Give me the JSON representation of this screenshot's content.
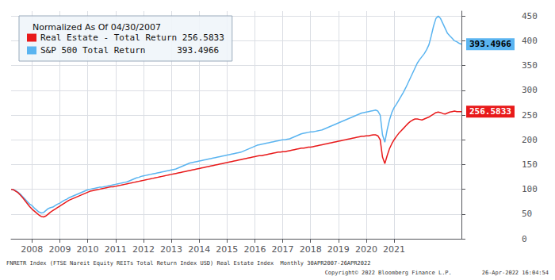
{
  "chart_data": {
    "type": "line",
    "legend_title": "Normalized As Of 04/30/2007",
    "legend": "upper left",
    "grid": true,
    "categories": [
      null,
      null,
      null,
      null,
      null,
      null,
      null,
      null,
      null,
      "2008",
      null,
      null,
      null,
      null,
      null,
      null,
      null,
      null,
      null,
      null,
      null,
      "2009",
      null,
      null,
      null,
      null,
      null,
      null,
      null,
      null,
      null,
      null,
      null,
      "2010",
      null,
      null,
      null,
      null,
      null,
      null,
      null,
      null,
      null,
      null,
      null,
      "2011",
      null,
      null,
      null,
      null,
      null,
      null,
      null,
      null,
      null,
      null,
      null,
      "2012",
      null,
      null,
      null,
      null,
      null,
      null,
      null,
      null,
      null,
      null,
      null,
      "2013",
      null,
      null,
      null,
      null,
      null,
      null,
      null,
      null,
      null,
      null,
      null,
      "2014",
      null,
      null,
      null,
      null,
      null,
      null,
      null,
      null,
      null,
      null,
      null,
      "2015",
      null,
      null,
      null,
      null,
      null,
      null,
      null,
      null,
      null,
      null,
      null,
      "2016",
      null,
      null,
      null,
      null,
      null,
      null,
      null,
      null,
      null,
      null,
      null,
      "2017",
      null,
      null,
      null,
      null,
      null,
      null,
      null,
      null,
      null,
      null,
      null,
      "2018",
      null,
      null,
      null,
      null,
      null,
      null,
      null,
      null,
      null,
      null,
      null,
      "2019",
      null,
      null,
      null,
      null,
      null,
      null,
      null,
      null,
      null,
      null,
      null,
      "2020",
      null,
      null,
      null,
      null,
      null,
      null,
      null,
      null,
      null,
      null,
      null,
      "2021",
      null,
      null,
      null,
      null,
      null,
      null,
      null,
      null,
      null,
      null,
      null,
      null,
      null,
      null,
      null,
      null,
      null,
      null,
      null,
      null,
      null,
      null,
      null,
      null,
      null,
      null,
      null,
      null,
      null
    ],
    "ylim": [
      0,
      460
    ],
    "yticks": [
      0,
      50,
      100,
      150,
      200,
      250,
      300,
      350,
      400,
      450
    ],
    "annotations": [
      {
        "text": "FNRETR Index (FTSE Nareit Equity REITs Total Return Index USD) Real Estate Index  Monthly 30APR2007-26APR2022"
      },
      {
        "text": "Copyright© 2022 Bloomberg Finance L.P.         26-Apr-2022 16:04:54"
      }
    ],
    "series": [
      {
        "name": "S&P 500 Total Return      393.4966",
        "color": "#5ab4f0",
        "end_label": "393.4966",
        "values": [
          100,
          99,
          97,
          94,
          90,
          85,
          80,
          75,
          70,
          67,
          62,
          58,
          54,
          52,
          53,
          57,
          61,
          63,
          64,
          67,
          70,
          72,
          75,
          78,
          80,
          83,
          85,
          87,
          89,
          91,
          93,
          95,
          97,
          99,
          100,
          101,
          102,
          103,
          104,
          104,
          105,
          106,
          107,
          108,
          109,
          110,
          111,
          112,
          113,
          114,
          115,
          117,
          119,
          121,
          123,
          124,
          126,
          127,
          128,
          129,
          130,
          131,
          132,
          133,
          134,
          135,
          136,
          137,
          138,
          139,
          140,
          141,
          143,
          145,
          147,
          149,
          151,
          153,
          154,
          155,
          156,
          157,
          158,
          159,
          160,
          161,
          162,
          163,
          164,
          165,
          166,
          167,
          168,
          169,
          170,
          171,
          172,
          173,
          174,
          175,
          177,
          179,
          181,
          183,
          185,
          187,
          189,
          190,
          191,
          192,
          193,
          194,
          195,
          196,
          197,
          198,
          199,
          200,
          200,
          201,
          202,
          204,
          206,
          208,
          210,
          212,
          213,
          214,
          215,
          216,
          216,
          217,
          218,
          219,
          220,
          222,
          224,
          226,
          228,
          230,
          232,
          234,
          236,
          238,
          240,
          242,
          244,
          246,
          248,
          250,
          252,
          254,
          255,
          256,
          257,
          258,
          259,
          260,
          258,
          250,
          210,
          195,
          220,
          240,
          255,
          265,
          272,
          280,
          288,
          296,
          305,
          315,
          325,
          335,
          345,
          355,
          362,
          368,
          374,
          382,
          392,
          410,
          430,
          445,
          450,
          445,
          435,
          425,
          415,
          410,
          405,
          400,
          398,
          395,
          393
        ]
      },
      {
        "name": "Real Estate - Total Return 256.5833",
        "color": "#e8191a",
        "end_label": "256.5833",
        "values": [
          100,
          99,
          96,
          93,
          88,
          83,
          77,
          71,
          65,
          60,
          56,
          52,
          48,
          45,
          44,
          46,
          50,
          54,
          57,
          60,
          63,
          66,
          69,
          72,
          75,
          78,
          80,
          82,
          84,
          86,
          88,
          90,
          92,
          94,
          96,
          97,
          98,
          99,
          100,
          101,
          102,
          103,
          104,
          105,
          105,
          106,
          107,
          108,
          109,
          110,
          111,
          112,
          113,
          114,
          115,
          116,
          117,
          118,
          119,
          120,
          121,
          122,
          123,
          124,
          125,
          126,
          127,
          128,
          129,
          130,
          131,
          132,
          133,
          134,
          135,
          136,
          137,
          138,
          139,
          140,
          141,
          142,
          143,
          144,
          145,
          146,
          147,
          148,
          149,
          150,
          151,
          152,
          153,
          154,
          155,
          156,
          157,
          158,
          159,
          160,
          161,
          162,
          163,
          164,
          165,
          166,
          167,
          168,
          168,
          169,
          170,
          171,
          172,
          173,
          174,
          175,
          175,
          176,
          176,
          177,
          178,
          179,
          180,
          181,
          182,
          183,
          183,
          184,
          185,
          185,
          186,
          187,
          188,
          189,
          190,
          191,
          192,
          193,
          194,
          195,
          196,
          197,
          198,
          199,
          200,
          201,
          202,
          203,
          204,
          205,
          206,
          207,
          207,
          208,
          208,
          209,
          210,
          210,
          208,
          200,
          165,
          152,
          168,
          182,
          192,
          200,
          207,
          213,
          218,
          223,
          228,
          233,
          237,
          240,
          242,
          242,
          241,
          240,
          242,
          244,
          246,
          249,
          252,
          255,
          256,
          255,
          253,
          252,
          254,
          256,
          257,
          258,
          257,
          257,
          257
        ]
      }
    ]
  }
}
